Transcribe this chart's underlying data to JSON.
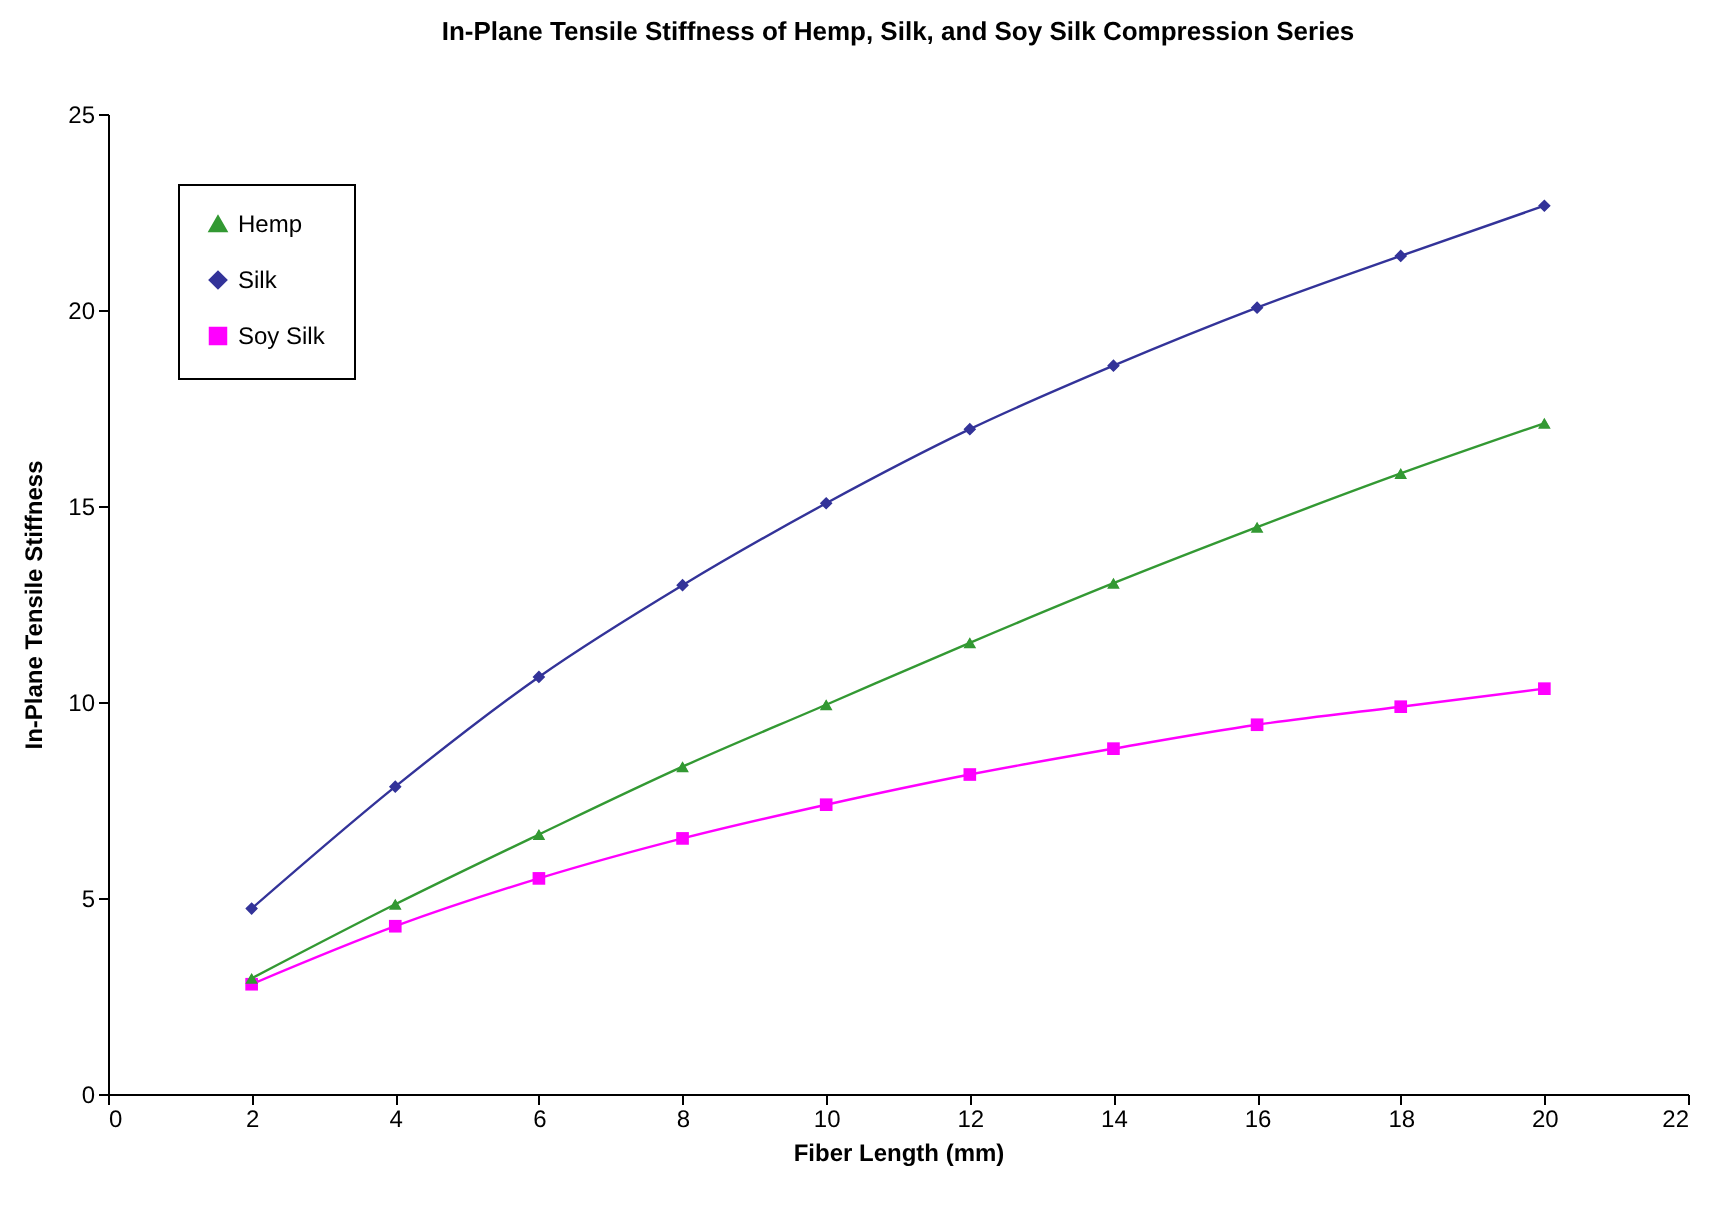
{
  "chart_data": {
    "type": "line",
    "title": "In-Plane Tensile Stiffness of Hemp, Silk, and Soy Silk Compression Series",
    "xlabel": "Fiber Length (mm)",
    "ylabel": "In-Plane Tensile Stiffness",
    "x": [
      2,
      4,
      6,
      8,
      10,
      12,
      14,
      16,
      18,
      20
    ],
    "series": [
      {
        "name": "Hemp",
        "color": "#339933",
        "marker": "triangle",
        "values": [
          2.95,
          4.84,
          6.62,
          8.35,
          9.93,
          11.51,
          13.03,
          14.46,
          15.83,
          17.11
        ]
      },
      {
        "name": "Silk",
        "color": "#333399",
        "marker": "diamond",
        "values": [
          4.73,
          7.84,
          10.64,
          12.98,
          15.07,
          16.96,
          18.58,
          20.06,
          21.38,
          22.66
        ]
      },
      {
        "name": "Soy Silk",
        "color": "#ff00ff",
        "marker": "square",
        "values": [
          2.8,
          4.28,
          5.5,
          6.52,
          7.38,
          8.15,
          8.81,
          9.42,
          9.88,
          10.34
        ]
      }
    ],
    "xlim": [
      0,
      22
    ],
    "xticks": [
      0,
      2,
      4,
      6,
      8,
      10,
      12,
      14,
      16,
      18,
      20,
      22
    ],
    "ylim": [
      0,
      25
    ],
    "yticks": [
      0,
      5,
      10,
      15,
      20,
      25
    ],
    "grid": false,
    "legend": "top left",
    "line_style": "solid"
  }
}
